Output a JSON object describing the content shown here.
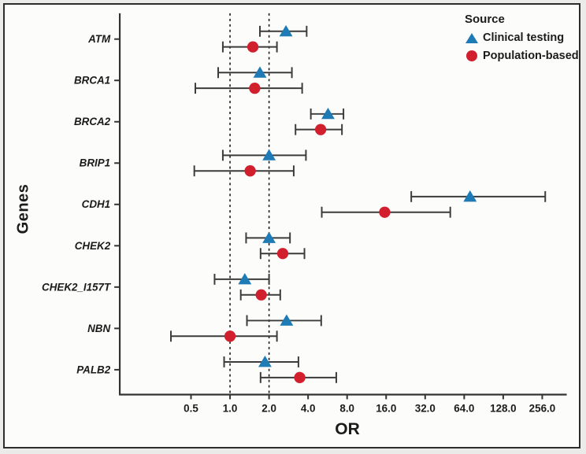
{
  "figure": {
    "y_axis_label": "Genes",
    "x_axis_label": "OR",
    "legend": {
      "title": "Source",
      "items": [
        {
          "label": "Clinical testing",
          "marker": "triangle-icon",
          "color": "#1f7bb6"
        },
        {
          "label": "Population-based",
          "marker": "circle-icon",
          "color": "#d11f2e"
        }
      ]
    },
    "colors": {
      "axis": "#333333",
      "error_bar": "#3c3c3c",
      "reference_line": "#1a1a1a",
      "text": "#1b1b1b",
      "clinical": "#1f7bb6",
      "population": "#d11f2e"
    }
  },
  "chart_data": {
    "type": "scatter",
    "subtype": "forest-plot",
    "title": "",
    "xlabel": "OR",
    "ylabel": "Genes",
    "x_scale": "log2",
    "xlim": [
      0.3,
      330
    ],
    "grid": false,
    "legend_position": "top-right",
    "x_ticks": [
      0.5,
      1.0,
      2.0,
      4.0,
      8.0,
      16.0,
      32.0,
      64.0,
      128.0,
      256.0
    ],
    "x_tick_labels": [
      "0.5",
      "1.0",
      "2.0",
      "4.0",
      "8.0",
      "16.0",
      "32.0",
      "64.0",
      "128.0",
      "256.0"
    ],
    "reference_lines": [
      1.0,
      2.0
    ],
    "categories": [
      "ATM",
      "BRCA1",
      "BRCA2",
      "BRIP1",
      "CDH1",
      "CHEK2",
      "CHEK2_I157T",
      "NBN",
      "PALB2"
    ],
    "series": [
      {
        "name": "Clinical testing",
        "marker": "triangle",
        "color": "#1f7bb6",
        "values": [
          {
            "or": 2.7,
            "lo": 1.7,
            "hi": 3.9
          },
          {
            "or": 1.7,
            "lo": 0.81,
            "hi": 3.0
          },
          {
            "or": 5.7,
            "lo": 4.2,
            "hi": 7.5
          },
          {
            "or": 2.0,
            "lo": 0.88,
            "hi": 3.85
          },
          {
            "or": 71.0,
            "lo": 25.0,
            "hi": 270.0
          },
          {
            "or": 2.0,
            "lo": 1.33,
            "hi": 2.9
          },
          {
            "or": 1.3,
            "lo": 0.76,
            "hi": 2.0
          },
          {
            "or": 2.73,
            "lo": 1.35,
            "hi": 5.05
          },
          {
            "or": 1.86,
            "lo": 0.9,
            "hi": 3.37
          }
        ]
      },
      {
        "name": "Population-based",
        "marker": "circle",
        "color": "#d11f2e",
        "values": [
          {
            "or": 1.5,
            "lo": 0.88,
            "hi": 2.3
          },
          {
            "or": 1.55,
            "lo": 0.54,
            "hi": 3.6
          },
          {
            "or": 5.0,
            "lo": 3.2,
            "hi": 7.3
          },
          {
            "or": 1.43,
            "lo": 0.53,
            "hi": 3.1
          },
          {
            "or": 15.6,
            "lo": 5.1,
            "hi": 50.0
          },
          {
            "or": 2.55,
            "lo": 1.72,
            "hi": 3.75
          },
          {
            "or": 1.74,
            "lo": 1.21,
            "hi": 2.44
          },
          {
            "or": 1.0,
            "lo": 0.35,
            "hi": 2.3
          },
          {
            "or": 3.45,
            "lo": 1.72,
            "hi": 6.6
          }
        ]
      }
    ]
  }
}
